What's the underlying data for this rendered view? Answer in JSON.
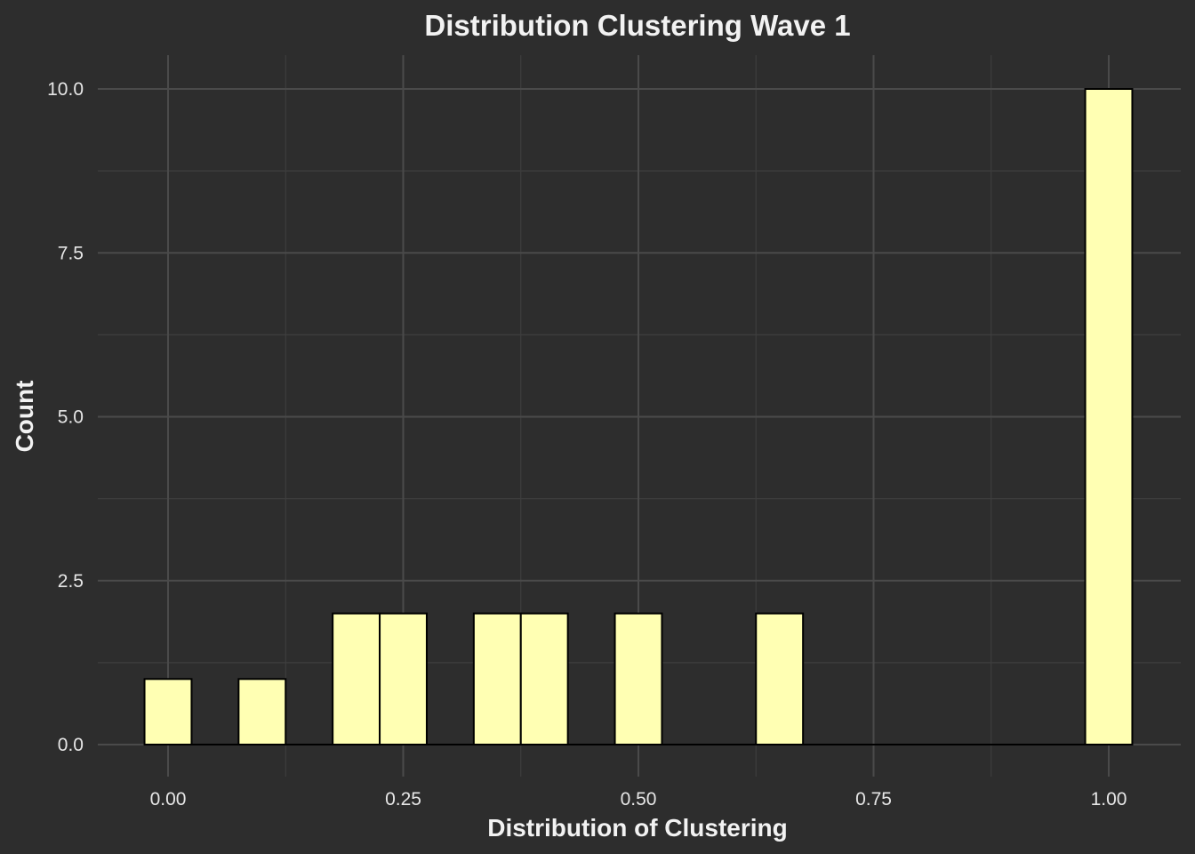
{
  "chart_data": {
    "type": "bar",
    "title": "Distribution Clustering Wave 1",
    "xlabel": "Distribution of Clustering",
    "ylabel": "Count",
    "xlim": [
      -0.05,
      1.05
    ],
    "ylim": [
      0,
      10
    ],
    "x_ticks": [
      "0.00",
      "0.25",
      "0.50",
      "0.75",
      "1.00"
    ],
    "y_ticks": [
      "0.0",
      "2.5",
      "5.0",
      "7.5",
      "10.0"
    ],
    "bin_width": 0.05,
    "bins": [
      {
        "x": 0.0,
        "count": 1
      },
      {
        "x": 0.1,
        "count": 1
      },
      {
        "x": 0.2,
        "count": 2
      },
      {
        "x": 0.25,
        "count": 2
      },
      {
        "x": 0.35,
        "count": 2
      },
      {
        "x": 0.4,
        "count": 2
      },
      {
        "x": 0.5,
        "count": 2
      },
      {
        "x": 0.65,
        "count": 2
      },
      {
        "x": 1.0,
        "count": 10
      }
    ],
    "bar_fill": "#ffffb3",
    "bar_outline": "#000000",
    "background": "#2d2d2d",
    "grid": true
  }
}
